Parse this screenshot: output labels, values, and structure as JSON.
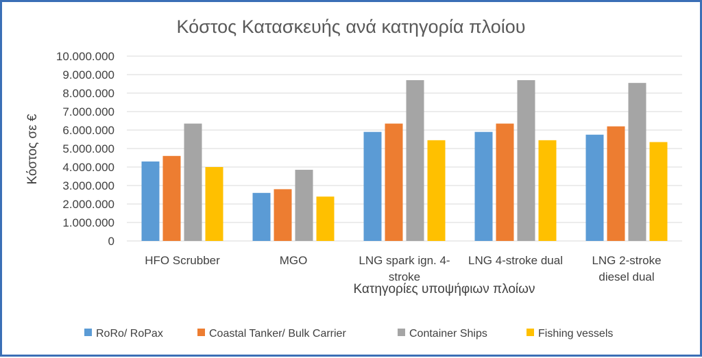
{
  "chart_data": {
    "type": "bar",
    "title": "Κόστος Κατασκευής ανά κατηγορία πλοίου",
    "xlabel": "Κατηγορίες υποψήφιων πλοίων",
    "ylabel": "Κόστος σε €",
    "ylim": [
      0,
      10000000
    ],
    "yticks": [
      0,
      1000000,
      2000000,
      3000000,
      4000000,
      5000000,
      6000000,
      7000000,
      8000000,
      9000000,
      10000000
    ],
    "ytick_labels": [
      "0",
      "1.000.000",
      "2.000.000",
      "3.000.000",
      "4.000.000",
      "5.000.000",
      "6.000.000",
      "7.000.000",
      "8.000.000",
      "9.000.000",
      "10.000.000"
    ],
    "categories": [
      [
        "HFO Scrubber"
      ],
      [
        "MGO"
      ],
      [
        "LNG spark ign. 4-",
        "stroke"
      ],
      [
        "LNG 4-stroke dual"
      ],
      [
        "LNG 2-stroke",
        "diesel dual"
      ]
    ],
    "series": [
      {
        "name": "RoRo/ RoPax",
        "color": "#5b9bd5",
        "values": [
          4300000,
          2600000,
          5900000,
          5900000,
          5750000
        ]
      },
      {
        "name": "Coastal Tanker/ Bulk Carrier",
        "color": "#ed7d31",
        "values": [
          4600000,
          2800000,
          6350000,
          6350000,
          6200000
        ]
      },
      {
        "name": "Container Ships",
        "color": "#a5a5a5",
        "values": [
          6350000,
          3850000,
          8700000,
          8700000,
          8550000
        ]
      },
      {
        "name": "Fishing vessels",
        "color": "#ffc000",
        "values": [
          4000000,
          2400000,
          5450000,
          5450000,
          5350000
        ]
      }
    ],
    "grid": true,
    "legend_position": "bottom"
  }
}
